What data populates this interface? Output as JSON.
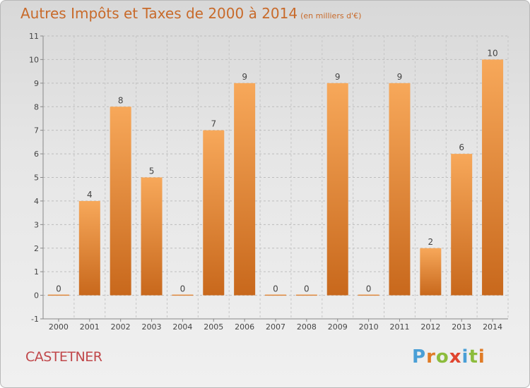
{
  "title": "Autres Impôts et Taxes de 2000 à 2014",
  "unit": "(en milliers d'€)",
  "city": "CASTETNER",
  "logo": {
    "p": "P",
    "r": "r",
    "o": "o",
    "x": "x",
    "i1": "i",
    "t": "t",
    "i2": "i"
  },
  "chart_data": {
    "type": "bar",
    "title": "Autres Impôts et Taxes de 2000 à 2014",
    "subtitle": "(en milliers d'€)",
    "categories": [
      "2000",
      "2001",
      "2002",
      "2003",
      "2004",
      "2005",
      "2006",
      "2007",
      "2008",
      "2009",
      "2010",
      "2011",
      "2012",
      "2013",
      "2014"
    ],
    "values": [
      0,
      4,
      8,
      5,
      0,
      7,
      9,
      0,
      0,
      9,
      0,
      9,
      2,
      6,
      10
    ],
    "ylim": [
      -1,
      11
    ],
    "yticks": [
      -1,
      0,
      1,
      2,
      3,
      4,
      5,
      6,
      7,
      8,
      9,
      10,
      11
    ],
    "grid": true,
    "bar_color": "#f08a30",
    "xlabel": "",
    "ylabel": ""
  }
}
